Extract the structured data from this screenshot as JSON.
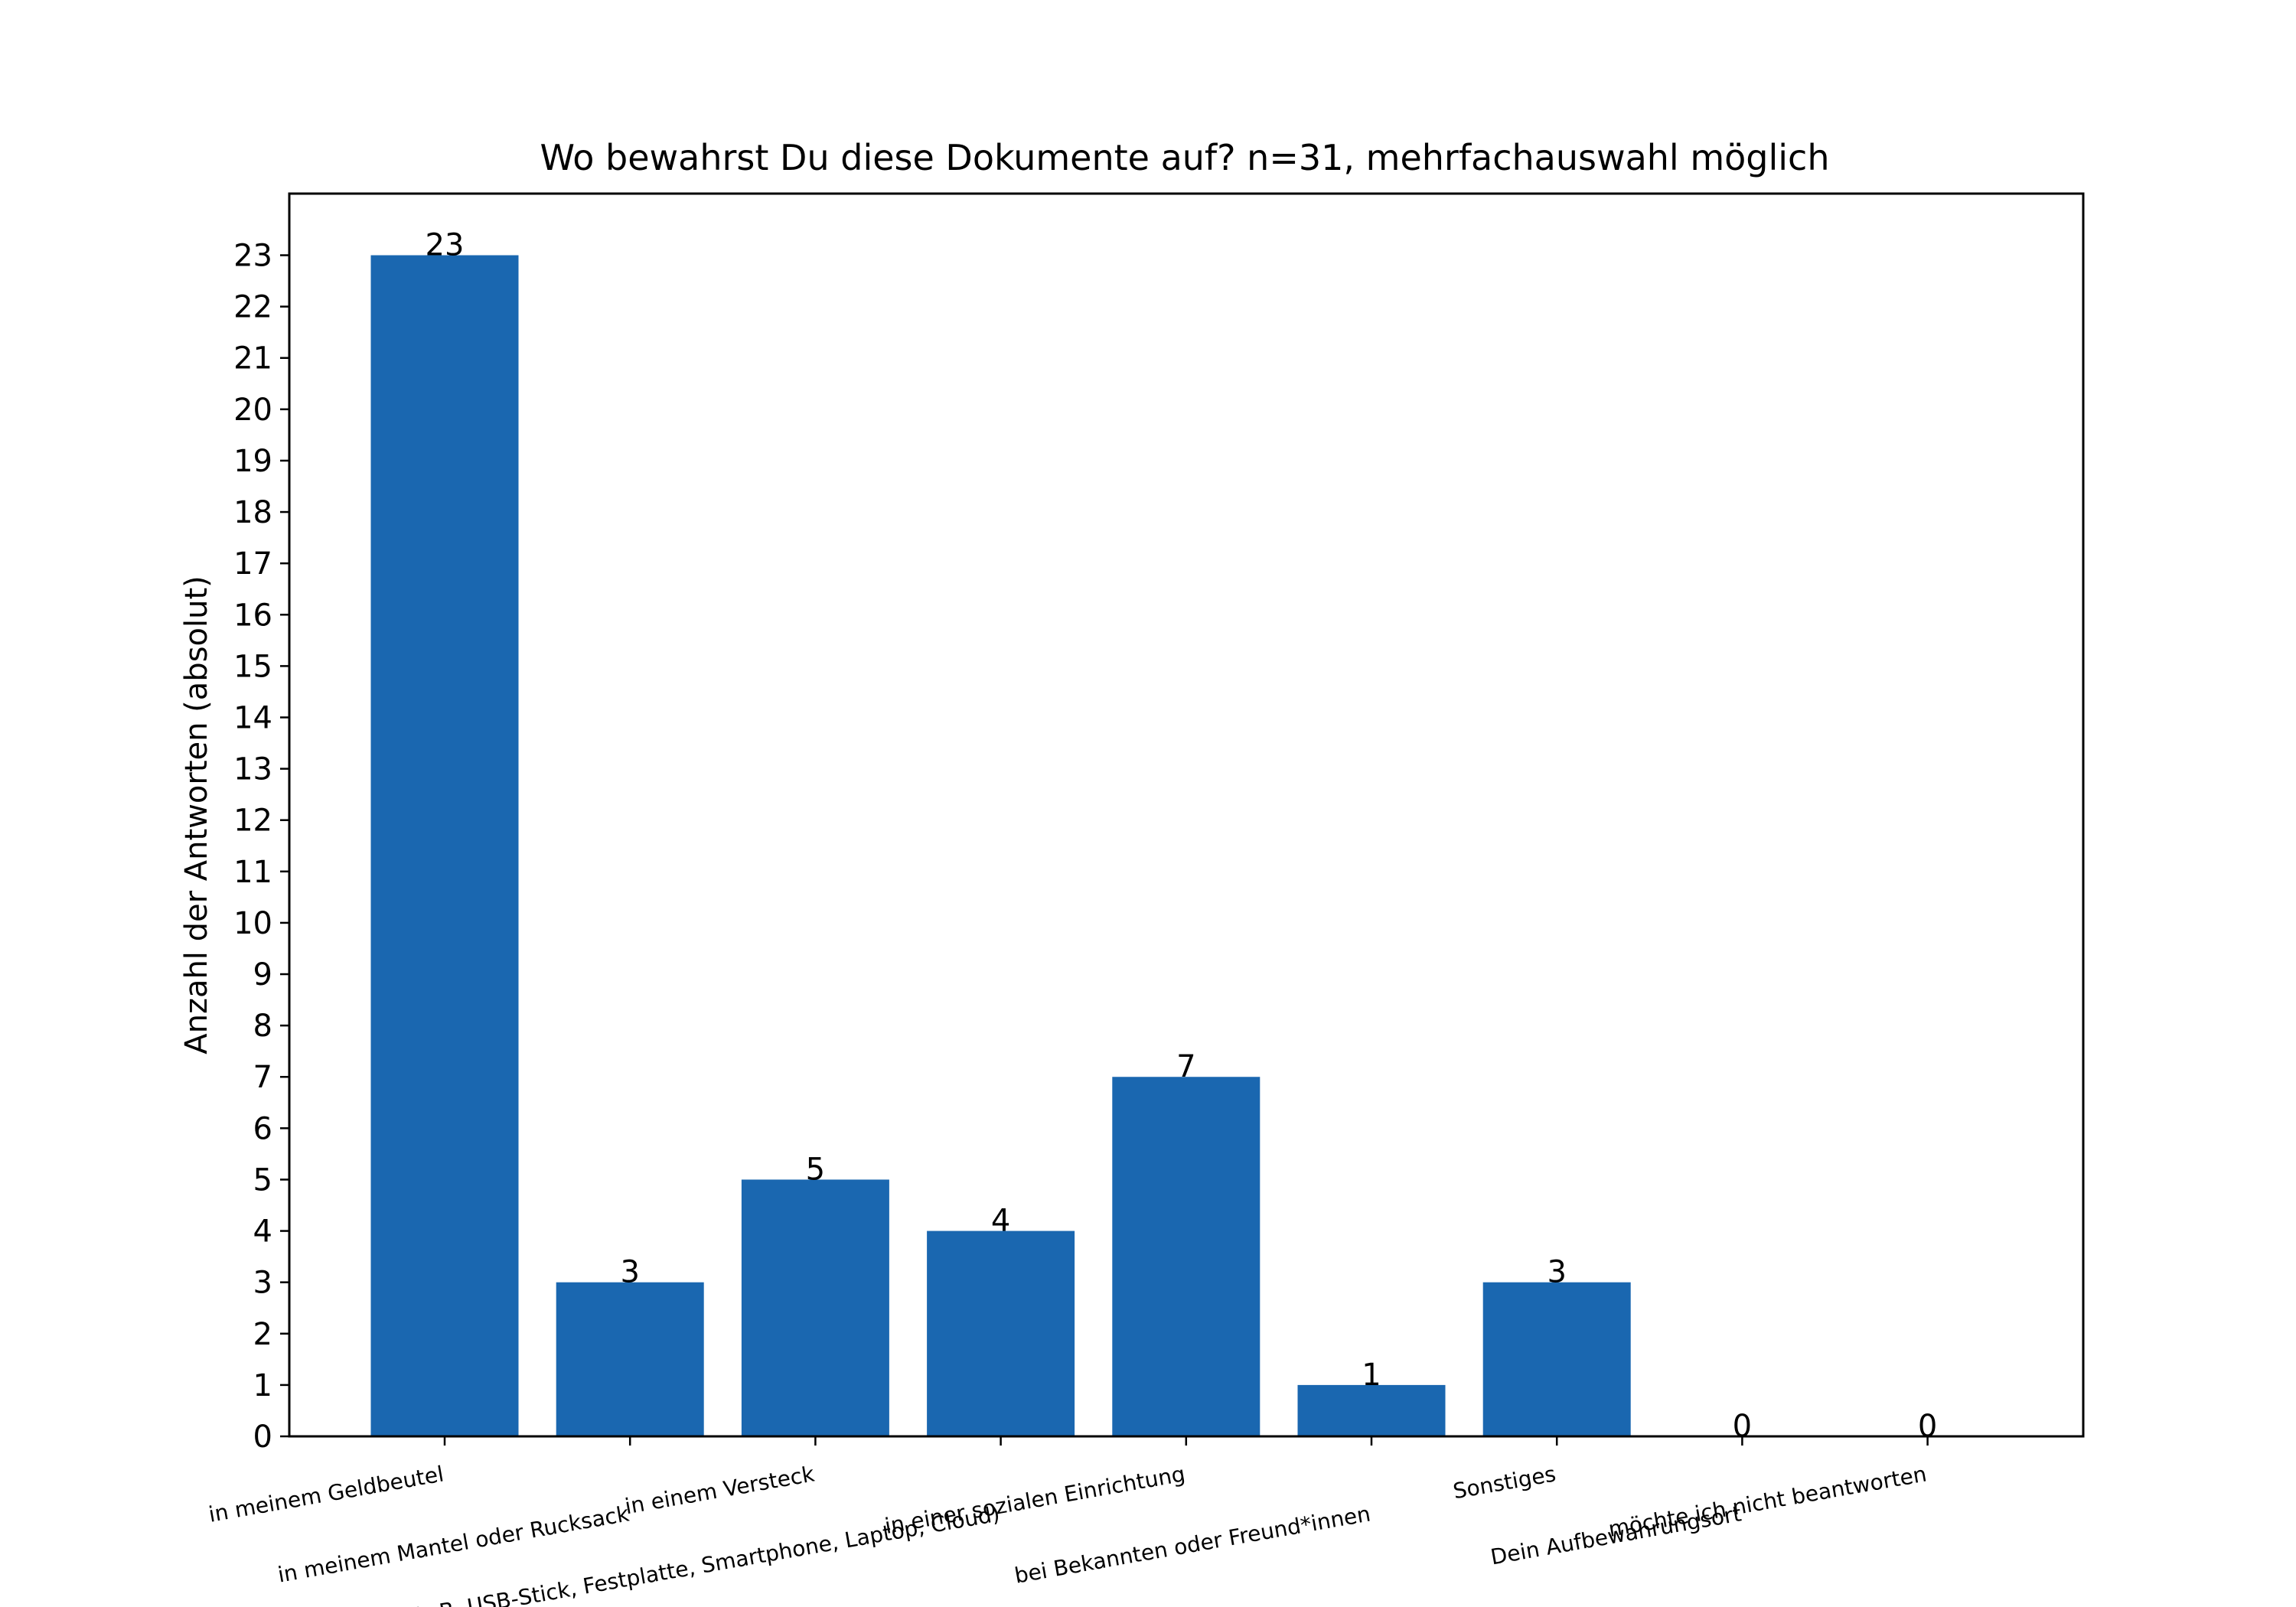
{
  "chart_data": {
    "type": "bar",
    "title": "Wo bewahrst Du diese Dokumente auf? n=31, mehrfachauswahl möglich",
    "xlabel": "",
    "ylabel": "Anzahl der Antworten (absolut)",
    "categories": [
      "in meinem Geldbeutel",
      "in meinem Mantel oder Rucksack",
      "in einem Versteck",
      "in einem Datenspeicher (z.B. USB-Stick, Festplatte, Smartphone, Laptop, Cloud)",
      "in einer sozialen Einrichtung",
      "bei Bekannten oder Freund*innen",
      "Sonstiges",
      "Dein Aufbewahrungsort",
      "möchte ich nicht beantworten"
    ],
    "values": [
      23,
      3,
      5,
      4,
      7,
      1,
      3,
      0,
      0
    ],
    "value_labels": [
      "23",
      "3",
      "5",
      "4",
      "7",
      "1",
      "3",
      "0",
      "0"
    ],
    "ylim": [
      0,
      24.2
    ],
    "yticks": [
      0,
      1,
      2,
      3,
      4,
      5,
      6,
      7,
      8,
      9,
      10,
      11,
      12,
      13,
      14,
      15,
      16,
      17,
      18,
      19,
      20,
      21,
      22,
      23
    ],
    "bar_color": "#1a67b0",
    "grid": false,
    "legend": "none"
  }
}
